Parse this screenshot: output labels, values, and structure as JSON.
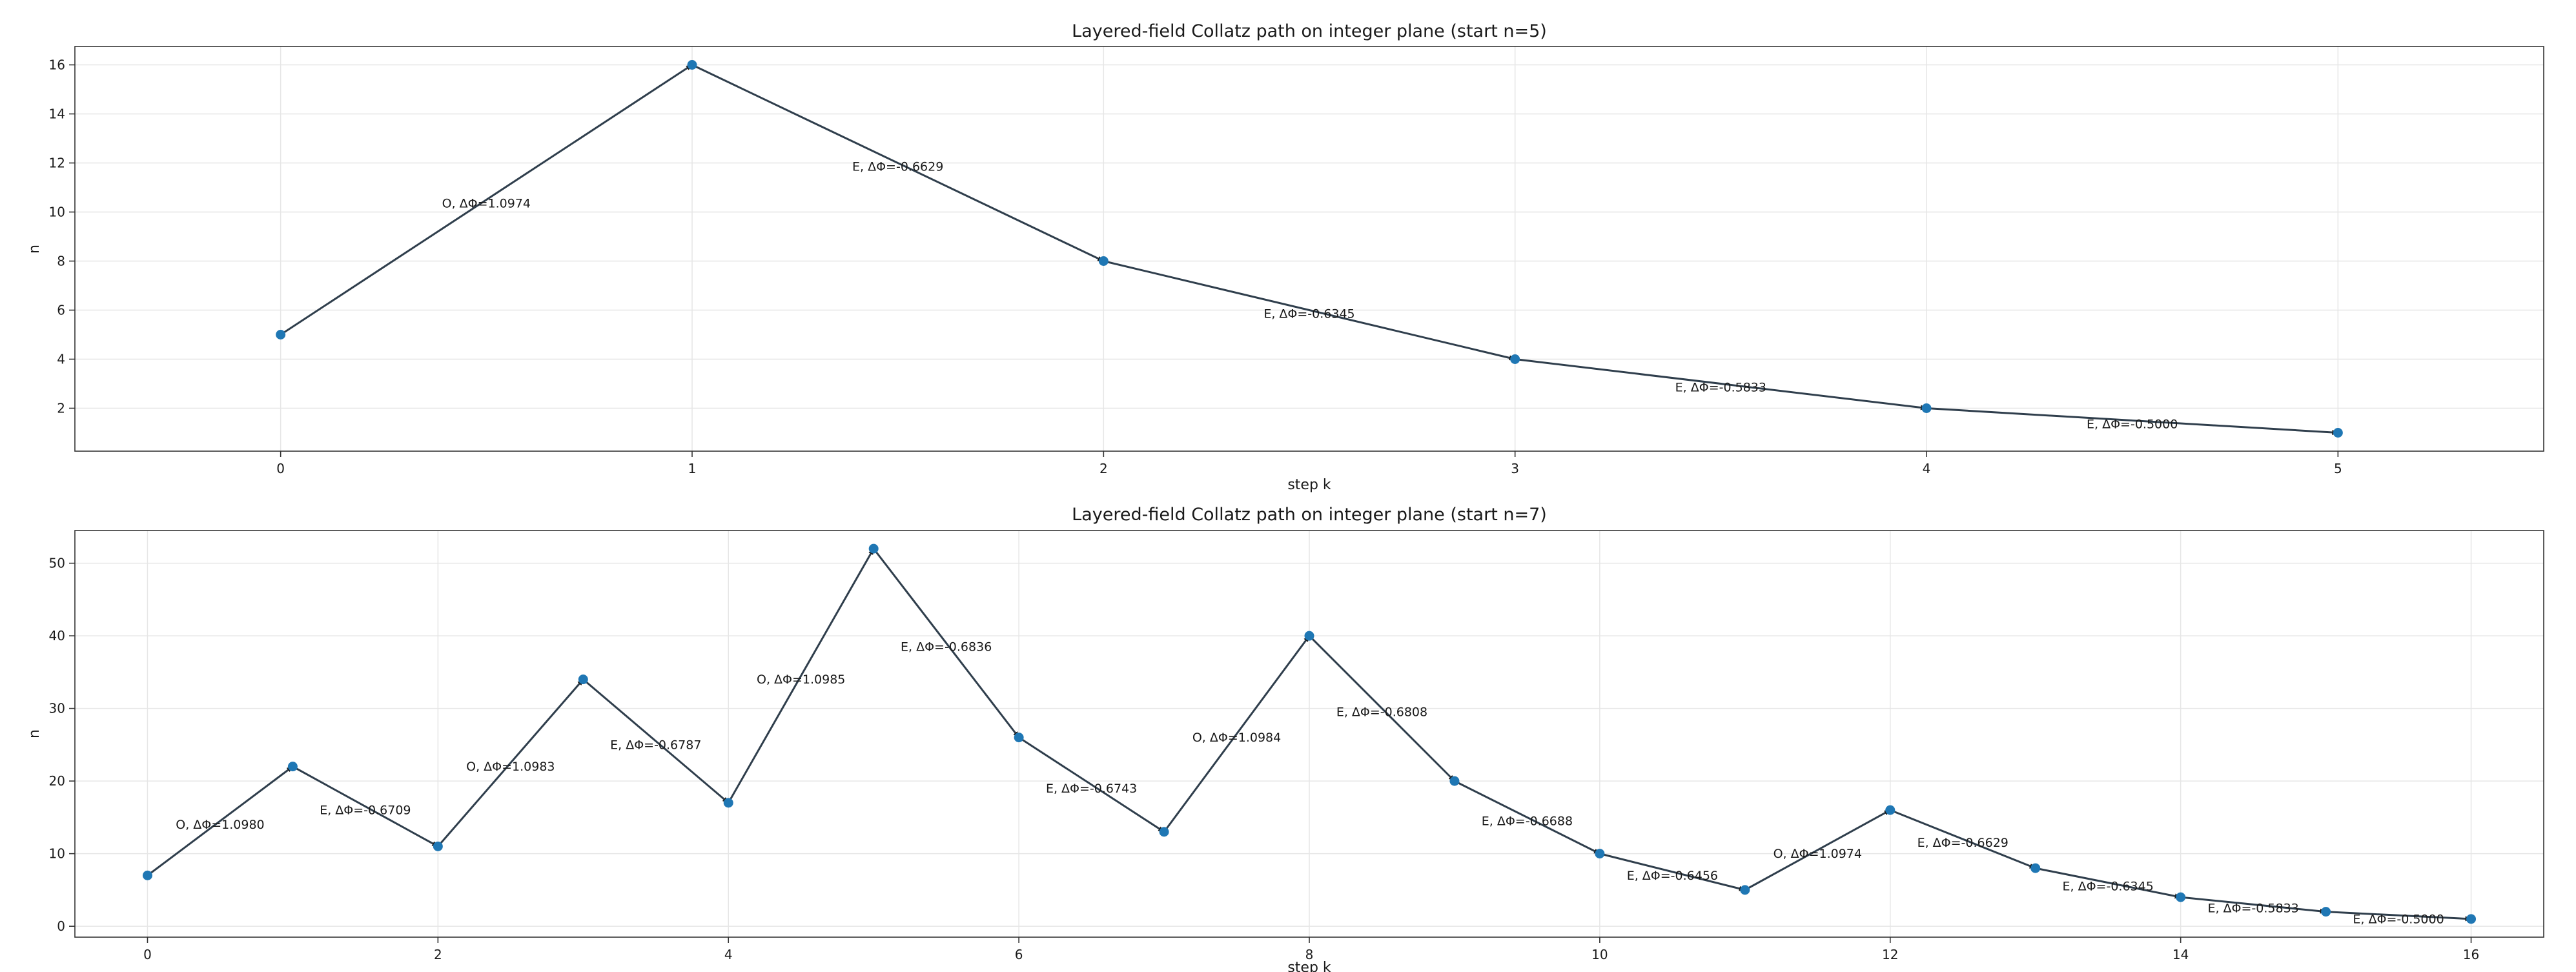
{
  "colors": {
    "marker": "#1f77b4",
    "path": "#2f3e4c",
    "grid": "#e6e6e6"
  },
  "chart_data": [
    {
      "type": "line",
      "title": "Layered-field Collatz path on integer plane (start n=5)",
      "xlabel": "step k",
      "ylabel": "n",
      "xlim": [
        -0.5,
        5.5
      ],
      "ylim": [
        0.25,
        16.75
      ],
      "xticks": [
        0,
        1,
        2,
        3,
        4,
        5
      ],
      "yticks": [
        2,
        4,
        6,
        8,
        10,
        12,
        14,
        16
      ],
      "grid": true,
      "series": [
        {
          "x": [
            0,
            1,
            2,
            3,
            4,
            5
          ],
          "y": [
            5,
            16,
            8,
            4,
            2,
            1
          ]
        }
      ],
      "annotations": [
        "O, ΔΦ=1.0974",
        "E, ΔΦ=-0.6629",
        "E, ΔΦ=-0.6345",
        "E, ΔΦ=-0.5833",
        "E, ΔΦ=-0.5000"
      ]
    },
    {
      "type": "line",
      "title": "Layered-field Collatz path on integer plane (start n=7)",
      "xlabel": "step k",
      "ylabel": "n",
      "xlim": [
        -0.5,
        16.5
      ],
      "ylim": [
        -1.5,
        54.5
      ],
      "xticks": [
        0,
        2,
        4,
        6,
        8,
        10,
        12,
        14,
        16
      ],
      "yticks": [
        0,
        10,
        20,
        30,
        40,
        50
      ],
      "grid": true,
      "series": [
        {
          "x": [
            0,
            1,
            2,
            3,
            4,
            5,
            6,
            7,
            8,
            9,
            10,
            11,
            12,
            13,
            14,
            15,
            16
          ],
          "y": [
            7,
            22,
            11,
            34,
            17,
            52,
            26,
            13,
            40,
            20,
            10,
            5,
            16,
            8,
            4,
            2,
            1
          ]
        }
      ],
      "annotations": [
        "O, ΔΦ=1.0980",
        "E, ΔΦ=-0.6709",
        "O, ΔΦ=1.0983",
        "E, ΔΦ=-0.6787",
        "O, ΔΦ=1.0985",
        "E, ΔΦ=-0.6836",
        "E, ΔΦ=-0.6743",
        "O, ΔΦ=1.0984",
        "E, ΔΦ=-0.6808",
        "E, ΔΦ=-0.6688",
        "E, ΔΦ=-0.6456",
        "O, ΔΦ=1.0974",
        "E, ΔΦ=-0.6629",
        "E, ΔΦ=-0.6345",
        "E, ΔΦ=-0.5833",
        "E, ΔΦ=-0.5000"
      ]
    }
  ]
}
